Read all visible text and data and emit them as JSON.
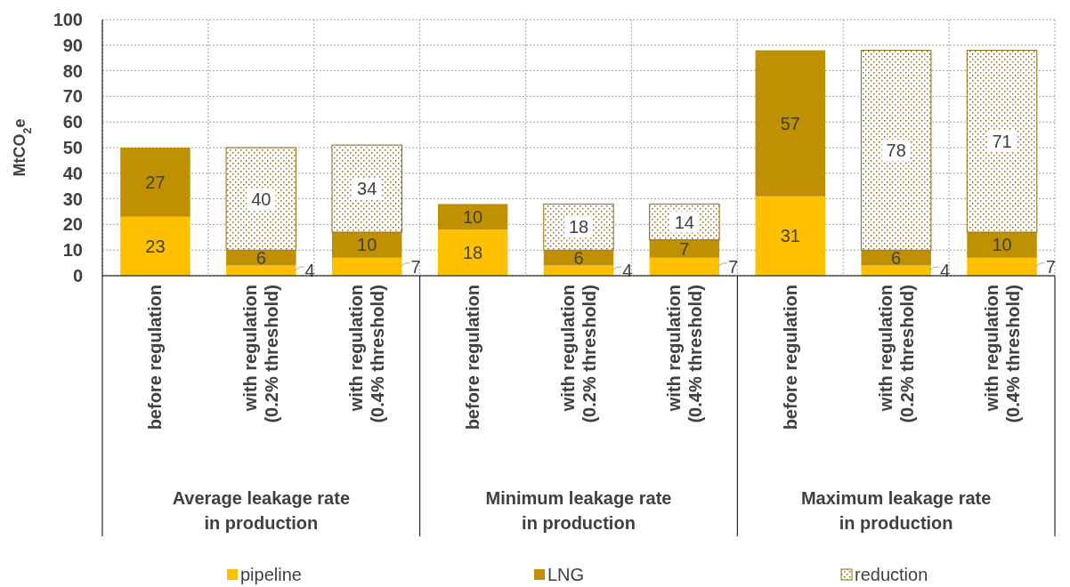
{
  "chart_data": {
    "type": "bar",
    "stacked": true,
    "ylabel": "MtCO$_{2}$e",
    "categories": [
      "before regulation",
      "with regulation\n(0.2% threshold)",
      "with regulation\n(0.4% threshold)",
      "before regulation",
      "with regulation\n(0.2% threshold)",
      "with regulation\n(0.4% threshold)",
      "before regulation",
      "with regulation\n(0.2% threshold)",
      "with regulation\n(0.4% threshold)"
    ],
    "annotations": [
      "Average leakage rate\nin production",
      "Minimum leakage rate\nin production",
      "Maximum leakage rate\nin production"
    ],
    "series": [
      {
        "name": "pipeline",
        "color": "#ffc000",
        "values": [
          23,
          4,
          7,
          18,
          4,
          7,
          31,
          4,
          7
        ]
      },
      {
        "name": "LNG",
        "color": "#bf9000",
        "values": [
          27,
          6,
          10,
          10,
          6,
          7,
          57,
          6,
          10
        ]
      },
      {
        "name": "reduction",
        "color": "#8c6a14",
        "values": [
          null,
          40,
          34,
          null,
          18,
          14,
          null,
          78,
          71
        ]
      }
    ],
    "ylim": [
      0,
      100
    ],
    "yticks": [
      0,
      10,
      20,
      30,
      40,
      50,
      60,
      70,
      80,
      90,
      100
    ],
    "grid": true,
    "legend": "bottom",
    "data_labels": true
  }
}
